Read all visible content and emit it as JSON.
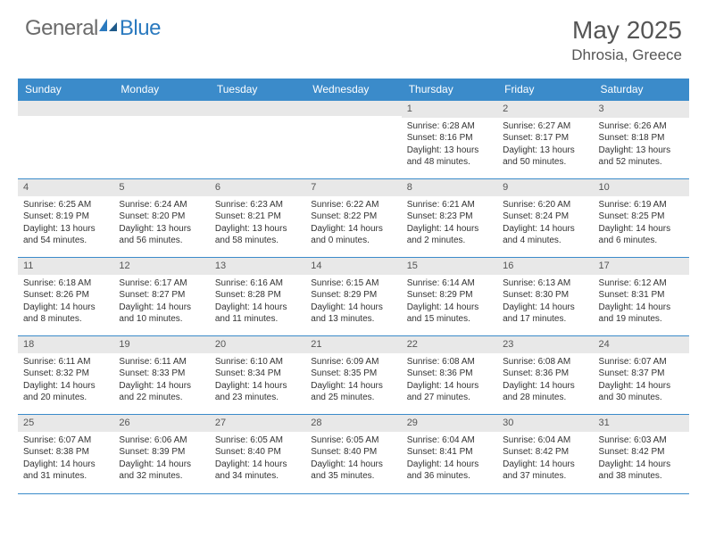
{
  "brand": {
    "name_a": "General",
    "name_b": "Blue"
  },
  "title": "May 2025",
  "location": "Dhrosia, Greece",
  "colors": {
    "header_blue": "#3b8bca",
    "row_gray": "#e8e8e8",
    "text": "#333333",
    "title_text": "#555555"
  },
  "day_headers": [
    "Sunday",
    "Monday",
    "Tuesday",
    "Wednesday",
    "Thursday",
    "Friday",
    "Saturday"
  ],
  "weeks": [
    [
      {
        "n": "",
        "sr": "",
        "ss": "",
        "dl": ""
      },
      {
        "n": "",
        "sr": "",
        "ss": "",
        "dl": ""
      },
      {
        "n": "",
        "sr": "",
        "ss": "",
        "dl": ""
      },
      {
        "n": "",
        "sr": "",
        "ss": "",
        "dl": ""
      },
      {
        "n": "1",
        "sr": "Sunrise: 6:28 AM",
        "ss": "Sunset: 8:16 PM",
        "dl": "Daylight: 13 hours and 48 minutes."
      },
      {
        "n": "2",
        "sr": "Sunrise: 6:27 AM",
        "ss": "Sunset: 8:17 PM",
        "dl": "Daylight: 13 hours and 50 minutes."
      },
      {
        "n": "3",
        "sr": "Sunrise: 6:26 AM",
        "ss": "Sunset: 8:18 PM",
        "dl": "Daylight: 13 hours and 52 minutes."
      }
    ],
    [
      {
        "n": "4",
        "sr": "Sunrise: 6:25 AM",
        "ss": "Sunset: 8:19 PM",
        "dl": "Daylight: 13 hours and 54 minutes."
      },
      {
        "n": "5",
        "sr": "Sunrise: 6:24 AM",
        "ss": "Sunset: 8:20 PM",
        "dl": "Daylight: 13 hours and 56 minutes."
      },
      {
        "n": "6",
        "sr": "Sunrise: 6:23 AM",
        "ss": "Sunset: 8:21 PM",
        "dl": "Daylight: 13 hours and 58 minutes."
      },
      {
        "n": "7",
        "sr": "Sunrise: 6:22 AM",
        "ss": "Sunset: 8:22 PM",
        "dl": "Daylight: 14 hours and 0 minutes."
      },
      {
        "n": "8",
        "sr": "Sunrise: 6:21 AM",
        "ss": "Sunset: 8:23 PM",
        "dl": "Daylight: 14 hours and 2 minutes."
      },
      {
        "n": "9",
        "sr": "Sunrise: 6:20 AM",
        "ss": "Sunset: 8:24 PM",
        "dl": "Daylight: 14 hours and 4 minutes."
      },
      {
        "n": "10",
        "sr": "Sunrise: 6:19 AM",
        "ss": "Sunset: 8:25 PM",
        "dl": "Daylight: 14 hours and 6 minutes."
      }
    ],
    [
      {
        "n": "11",
        "sr": "Sunrise: 6:18 AM",
        "ss": "Sunset: 8:26 PM",
        "dl": "Daylight: 14 hours and 8 minutes."
      },
      {
        "n": "12",
        "sr": "Sunrise: 6:17 AM",
        "ss": "Sunset: 8:27 PM",
        "dl": "Daylight: 14 hours and 10 minutes."
      },
      {
        "n": "13",
        "sr": "Sunrise: 6:16 AM",
        "ss": "Sunset: 8:28 PM",
        "dl": "Daylight: 14 hours and 11 minutes."
      },
      {
        "n": "14",
        "sr": "Sunrise: 6:15 AM",
        "ss": "Sunset: 8:29 PM",
        "dl": "Daylight: 14 hours and 13 minutes."
      },
      {
        "n": "15",
        "sr": "Sunrise: 6:14 AM",
        "ss": "Sunset: 8:29 PM",
        "dl": "Daylight: 14 hours and 15 minutes."
      },
      {
        "n": "16",
        "sr": "Sunrise: 6:13 AM",
        "ss": "Sunset: 8:30 PM",
        "dl": "Daylight: 14 hours and 17 minutes."
      },
      {
        "n": "17",
        "sr": "Sunrise: 6:12 AM",
        "ss": "Sunset: 8:31 PM",
        "dl": "Daylight: 14 hours and 19 minutes."
      }
    ],
    [
      {
        "n": "18",
        "sr": "Sunrise: 6:11 AM",
        "ss": "Sunset: 8:32 PM",
        "dl": "Daylight: 14 hours and 20 minutes."
      },
      {
        "n": "19",
        "sr": "Sunrise: 6:11 AM",
        "ss": "Sunset: 8:33 PM",
        "dl": "Daylight: 14 hours and 22 minutes."
      },
      {
        "n": "20",
        "sr": "Sunrise: 6:10 AM",
        "ss": "Sunset: 8:34 PM",
        "dl": "Daylight: 14 hours and 23 minutes."
      },
      {
        "n": "21",
        "sr": "Sunrise: 6:09 AM",
        "ss": "Sunset: 8:35 PM",
        "dl": "Daylight: 14 hours and 25 minutes."
      },
      {
        "n": "22",
        "sr": "Sunrise: 6:08 AM",
        "ss": "Sunset: 8:36 PM",
        "dl": "Daylight: 14 hours and 27 minutes."
      },
      {
        "n": "23",
        "sr": "Sunrise: 6:08 AM",
        "ss": "Sunset: 8:36 PM",
        "dl": "Daylight: 14 hours and 28 minutes."
      },
      {
        "n": "24",
        "sr": "Sunrise: 6:07 AM",
        "ss": "Sunset: 8:37 PM",
        "dl": "Daylight: 14 hours and 30 minutes."
      }
    ],
    [
      {
        "n": "25",
        "sr": "Sunrise: 6:07 AM",
        "ss": "Sunset: 8:38 PM",
        "dl": "Daylight: 14 hours and 31 minutes."
      },
      {
        "n": "26",
        "sr": "Sunrise: 6:06 AM",
        "ss": "Sunset: 8:39 PM",
        "dl": "Daylight: 14 hours and 32 minutes."
      },
      {
        "n": "27",
        "sr": "Sunrise: 6:05 AM",
        "ss": "Sunset: 8:40 PM",
        "dl": "Daylight: 14 hours and 34 minutes."
      },
      {
        "n": "28",
        "sr": "Sunrise: 6:05 AM",
        "ss": "Sunset: 8:40 PM",
        "dl": "Daylight: 14 hours and 35 minutes."
      },
      {
        "n": "29",
        "sr": "Sunrise: 6:04 AM",
        "ss": "Sunset: 8:41 PM",
        "dl": "Daylight: 14 hours and 36 minutes."
      },
      {
        "n": "30",
        "sr": "Sunrise: 6:04 AM",
        "ss": "Sunset: 8:42 PM",
        "dl": "Daylight: 14 hours and 37 minutes."
      },
      {
        "n": "31",
        "sr": "Sunrise: 6:03 AM",
        "ss": "Sunset: 8:42 PM",
        "dl": "Daylight: 14 hours and 38 minutes."
      }
    ]
  ]
}
